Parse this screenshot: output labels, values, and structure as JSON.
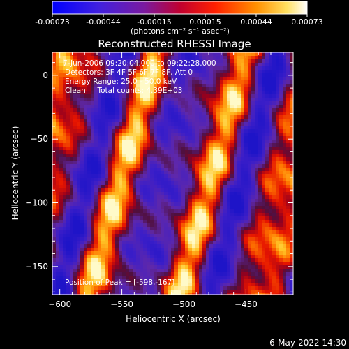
{
  "colorbar": {
    "ticks": [
      "-0.00073",
      "-0.00044",
      "-0.00015",
      "0.00015",
      "0.00044",
      "0.00073"
    ],
    "unit_label": "(photons cm⁻² s⁻¹ asec⁻²)"
  },
  "plot": {
    "title": "Reconstructed RHESSI Image",
    "info_lines": [
      "7-Jun-2006 09:20:04.000 to 09:22:28.000",
      "Detectors: 3F 4F 5F 6F 7F 8F, Att 0",
      "Energy Range: 25.0 - 50.0 keV",
      "Clean     Total counts: 4.39E+03"
    ],
    "peak_label": "Position of Peak = [-598,-167]",
    "timestamp": "6-May-2022 14:30"
  },
  "chart_data": {
    "type": "heatmap",
    "title": "Reconstructed RHESSI Image",
    "xlabel": "Heliocentric X (arcsec)",
    "ylabel": "Heliocentric Y (arcsec)",
    "xlim": [
      -606,
      -412
    ],
    "ylim": [
      -172,
      18
    ],
    "x_ticks": [
      -600,
      -550,
      -500,
      -450
    ],
    "y_ticks": [
      0,
      -50,
      -100,
      -150
    ],
    "x_tick_labels": [
      "−600",
      "−550",
      "−500",
      "−450"
    ],
    "y_tick_labels": [
      "0",
      "−50",
      "−100",
      "−150"
    ],
    "colorbar_range": [
      -0.00073,
      0.00073
    ],
    "colormap": "red-temperature (blue-purple-red-yellow-white)",
    "peak_position": [
      -598,
      -167
    ]
  }
}
